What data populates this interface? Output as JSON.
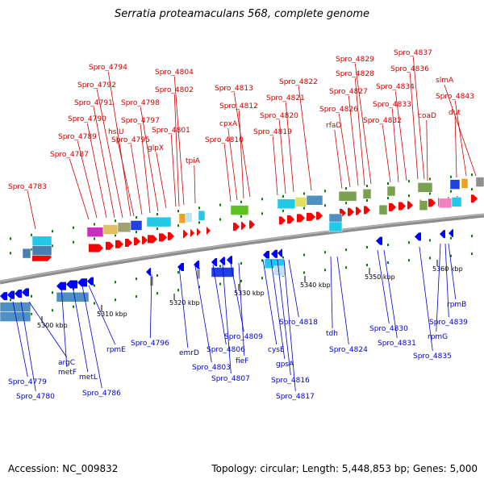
{
  "header": {
    "title": "Serratia proteamaculans 568, complete genome"
  },
  "footer": {
    "accession": "Accession: NC_009832",
    "topology": "Topology: circular; Length: 5,448,853 bp; Genes: 5,000"
  },
  "colors": {
    "forward_strand_arrow": "#ff0000",
    "reverse_strand_arrow": "#0000ff",
    "forward_label": "#cc0000",
    "reverse_label": "#0000cc",
    "backbone": "#8c8c8c",
    "tick_marks": "#008000"
  },
  "scale_labels": [
    "5300 kbp",
    "5310 kbp",
    "5320 kbp",
    "5330 kbp",
    "5340 kbp",
    "5350 kbp",
    "5360 kbp"
  ],
  "forward_genes": [
    "Spro_4783",
    "Spro_4787",
    "Spro_4789",
    "Spro_4790",
    "Spro_4791",
    "Spro_4792",
    "Spro_4794",
    "hslU",
    "Spro_4795",
    "Spro_4797",
    "Spro_4798",
    "glpX",
    "Spro_4801",
    "Spro_4802",
    "Spro_4804",
    "tpiA",
    "Spro_4810",
    "cpxA",
    "Spro_4812",
    "Spro_4813",
    "Spro_4819",
    "Spro_4820",
    "Spro_4821",
    "Spro_4822",
    "rfaD",
    "Spro_4826",
    "Spro_4827",
    "Spro_4828",
    "Spro_4829",
    "Spro_4832",
    "Spro_4833",
    "Spro_4834",
    "coaD",
    "Spro_4836",
    "Spro_4837",
    "dut",
    "Spro_4843",
    "slmA"
  ],
  "reverse_genes": [
    "Spro_4779",
    "Spro_4780",
    "argC",
    "metF",
    "metL",
    "Spro_4786",
    "rpmE",
    "Spro_4796",
    "emrD",
    "Spro_4803",
    "Spro_4806",
    "Spro_4807",
    "Spro_4809",
    "fieF",
    "cysE",
    "gpsA",
    "Spro_4816",
    "Spro_4817",
    "Spro_4818",
    "tdh",
    "Spro_4824",
    "Spro_4830",
    "Spro_4831",
    "Spro_4835",
    "rpmG",
    "Spro_4839",
    "rpmB"
  ]
}
